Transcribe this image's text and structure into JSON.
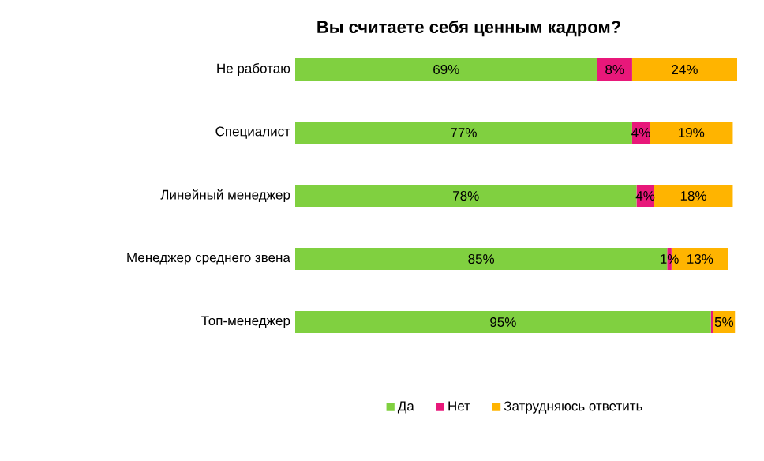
{
  "chart_data": {
    "type": "bar",
    "orientation": "horizontal",
    "stacked": true,
    "title": "Вы считаете себя ценным кадром?",
    "categories": [
      "Не работаю",
      "Специалист",
      "Линейный менеджер",
      "Менеджер среднего звена",
      "Топ-менеджер"
    ],
    "series": [
      {
        "name": "Да",
        "color": "#80d040",
        "values": [
          69,
          77,
          78,
          85,
          95
        ],
        "value_labels": [
          "69%",
          "77%",
          "78%",
          "85%",
          "95%"
        ]
      },
      {
        "name": "Нет",
        "color": "#e8187a",
        "values": [
          8,
          4,
          4,
          1,
          0.5
        ],
        "value_labels": [
          "8%",
          "4%",
          "4%",
          "1%",
          null
        ]
      },
      {
        "name": "Затрудняюсь ответить",
        "color": "#ffb400",
        "values": [
          24,
          19,
          18,
          13,
          5
        ],
        "value_labels": [
          "24%",
          "19%",
          "18%",
          "13%",
          "5%"
        ]
      }
    ],
    "legend": "bottom"
  }
}
